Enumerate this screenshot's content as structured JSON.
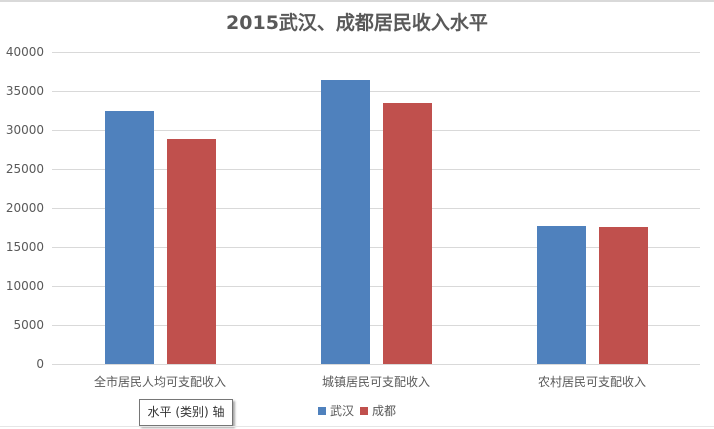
{
  "chart_data": {
    "type": "bar",
    "title": "2015武汉、成都居民收入水平",
    "xlabel": "",
    "ylabel": "",
    "categories": [
      "全市居民人均可支配收入",
      "城镇居民可支配收入",
      "农村居民可支配收入"
    ],
    "series": [
      {
        "name": "武汉",
        "color": "#4f81bd",
        "values": [
          32400,
          36400,
          17700
        ]
      },
      {
        "name": "成都",
        "color": "#c0504d",
        "values": [
          28800,
          33500,
          17600
        ]
      }
    ],
    "ylim": [
      0,
      40000
    ],
    "yticks": [
      "0",
      "5000",
      "10000",
      "15000",
      "20000",
      "25000",
      "30000",
      "35000",
      "40000"
    ],
    "grid": true,
    "legend_position": "bottom"
  },
  "tooltip": {
    "text": "水平 (类别) 轴"
  },
  "legend": {
    "items": [
      {
        "label": "武汉",
        "color": "#4f81bd"
      },
      {
        "label": "成都",
        "color": "#c0504d"
      }
    ]
  }
}
